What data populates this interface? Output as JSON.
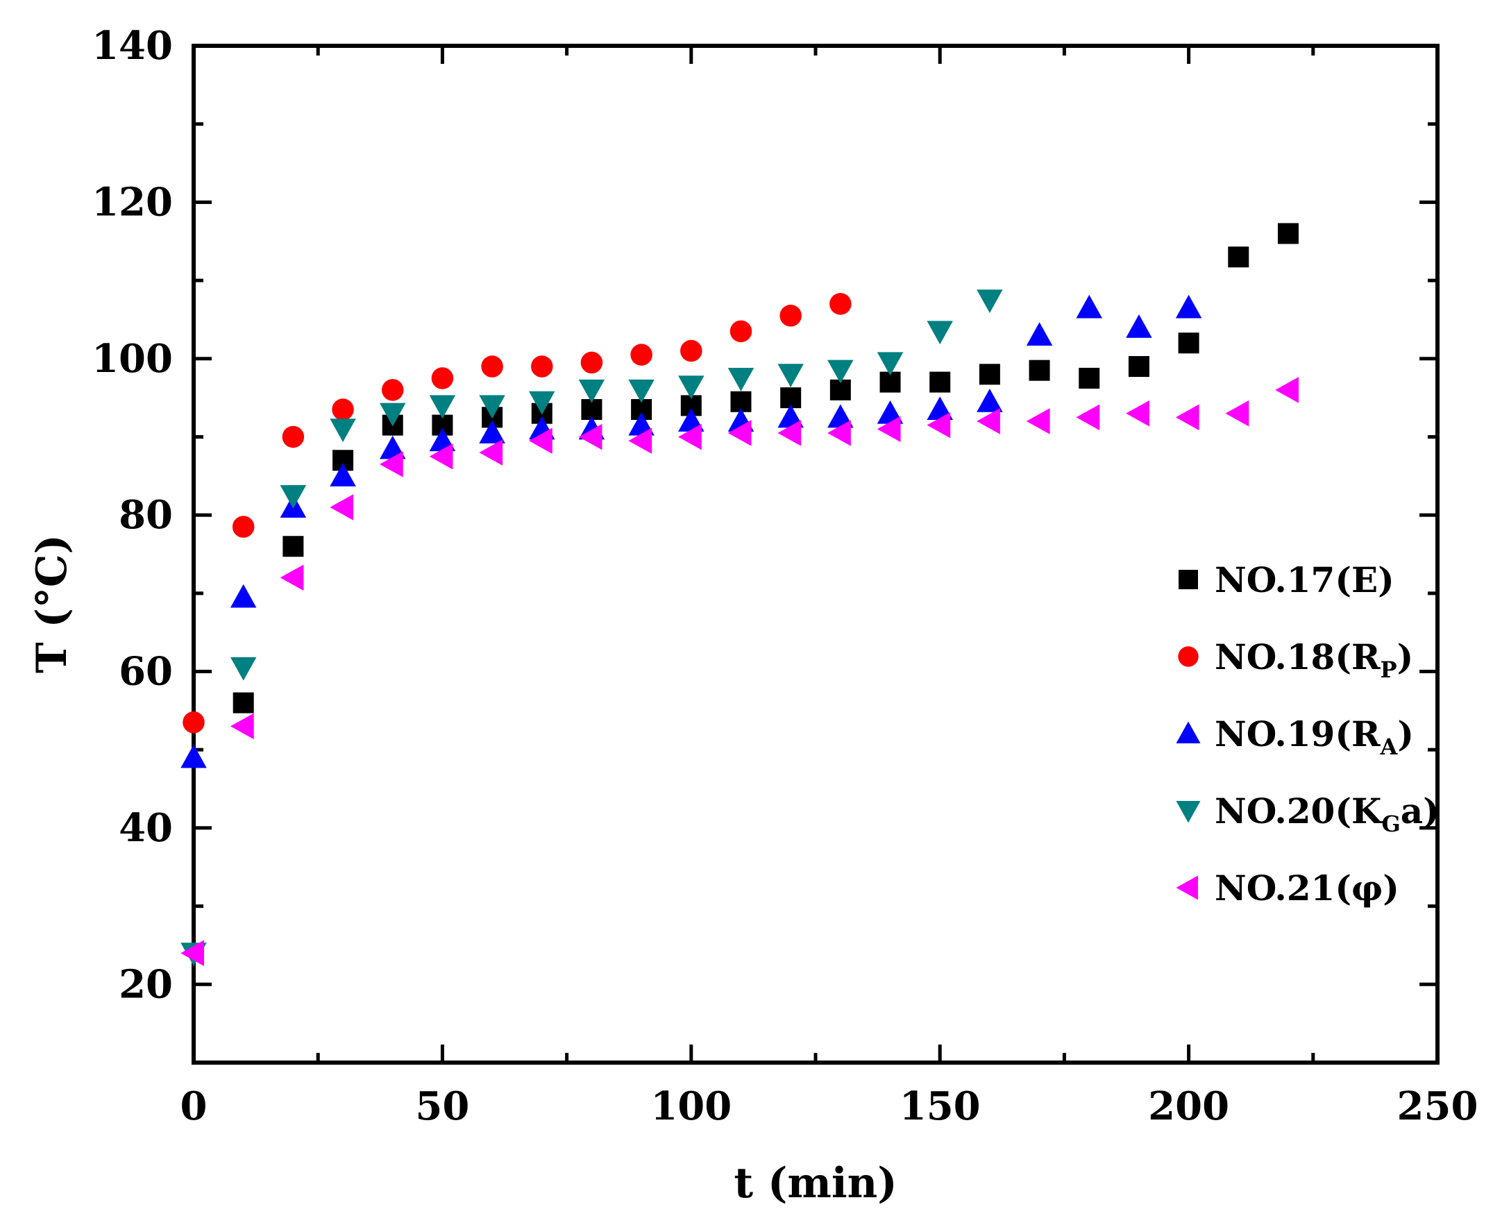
{
  "chart_data": {
    "type": "scatter",
    "title": "",
    "xlabel": "t (min)",
    "ylabel": "T (°C)",
    "xlim": [
      0,
      250
    ],
    "ylim": [
      10,
      140
    ],
    "xticks": [
      0,
      50,
      100,
      150,
      200,
      250
    ],
    "yticks": [
      20,
      40,
      60,
      80,
      100,
      120,
      140
    ],
    "legend_position": "center-right",
    "series": [
      {
        "name": "NO.17(E)",
        "label_main": "NO.17(E)",
        "label_sub": "",
        "label_tail": "",
        "marker": "square",
        "color": "#000000",
        "x": [
          10,
          20,
          30,
          40,
          50,
          60,
          70,
          80,
          90,
          100,
          110,
          120,
          130,
          140,
          150,
          160,
          170,
          180,
          190,
          200,
          210,
          220
        ],
        "y": [
          56,
          76,
          87,
          91.5,
          91.5,
          92.5,
          93,
          93.5,
          93.5,
          94,
          94.5,
          95,
          96,
          97,
          97,
          98,
          98.5,
          97.5,
          99,
          102,
          113,
          116
        ]
      },
      {
        "name": "NO.18(RP)",
        "label_main": "NO.18(R",
        "label_sub": "P",
        "label_tail": ")",
        "marker": "circle",
        "color": "#ff0000",
        "x": [
          0,
          10,
          20,
          30,
          40,
          50,
          60,
          70,
          80,
          90,
          100,
          110,
          120,
          130
        ],
        "y": [
          53.5,
          78.5,
          90,
          93.5,
          96,
          97.5,
          99,
          99,
          99.5,
          100.5,
          101,
          103.5,
          105.5,
          107
        ]
      },
      {
        "name": "NO.19(RA)",
        "label_main": "NO.19(R",
        "label_sub": "A",
        "label_tail": ")",
        "marker": "triangle-up",
        "color": "#0000ff",
        "x": [
          0,
          10,
          20,
          30,
          40,
          50,
          60,
          70,
          80,
          90,
          100,
          110,
          120,
          130,
          140,
          150,
          160,
          170,
          180,
          190,
          200
        ],
        "y": [
          49,
          69.5,
          81,
          85,
          88.5,
          89.5,
          90.5,
          91,
          91,
          91.5,
          92,
          92,
          92.5,
          92.5,
          93,
          93.5,
          94.5,
          103,
          106.5,
          104,
          106.5
        ]
      },
      {
        "name": "NO.20(KGa)",
        "label_main": "NO.20(K",
        "label_sub": "G",
        "label_tail": "a)",
        "marker": "triangle-down",
        "color": "#008080",
        "x": [
          0,
          10,
          20,
          30,
          40,
          50,
          60,
          70,
          80,
          90,
          100,
          110,
          120,
          130,
          140,
          150,
          160
        ],
        "y": [
          24,
          60.5,
          82.5,
          91,
          93,
          94,
          94,
          94.5,
          96,
          96,
          96.5,
          97.5,
          98,
          98.5,
          99.5,
          103.5,
          107.5
        ]
      },
      {
        "name": "NO.21(φ)",
        "label_main": "NO.21(φ)",
        "label_sub": "",
        "label_tail": "",
        "marker": "triangle-left",
        "color": "#ff00ff",
        "x": [
          0,
          10,
          20,
          30,
          40,
          50,
          60,
          70,
          80,
          90,
          100,
          110,
          120,
          130,
          140,
          150,
          160,
          170,
          180,
          190,
          200,
          210,
          220
        ],
        "y": [
          24,
          53,
          72,
          81,
          86.5,
          87.5,
          88,
          89.5,
          90,
          89.5,
          90,
          90.5,
          90.5,
          90.5,
          91,
          91.5,
          92,
          92,
          92.5,
          93,
          92.5,
          93,
          96
        ]
      }
    ]
  }
}
